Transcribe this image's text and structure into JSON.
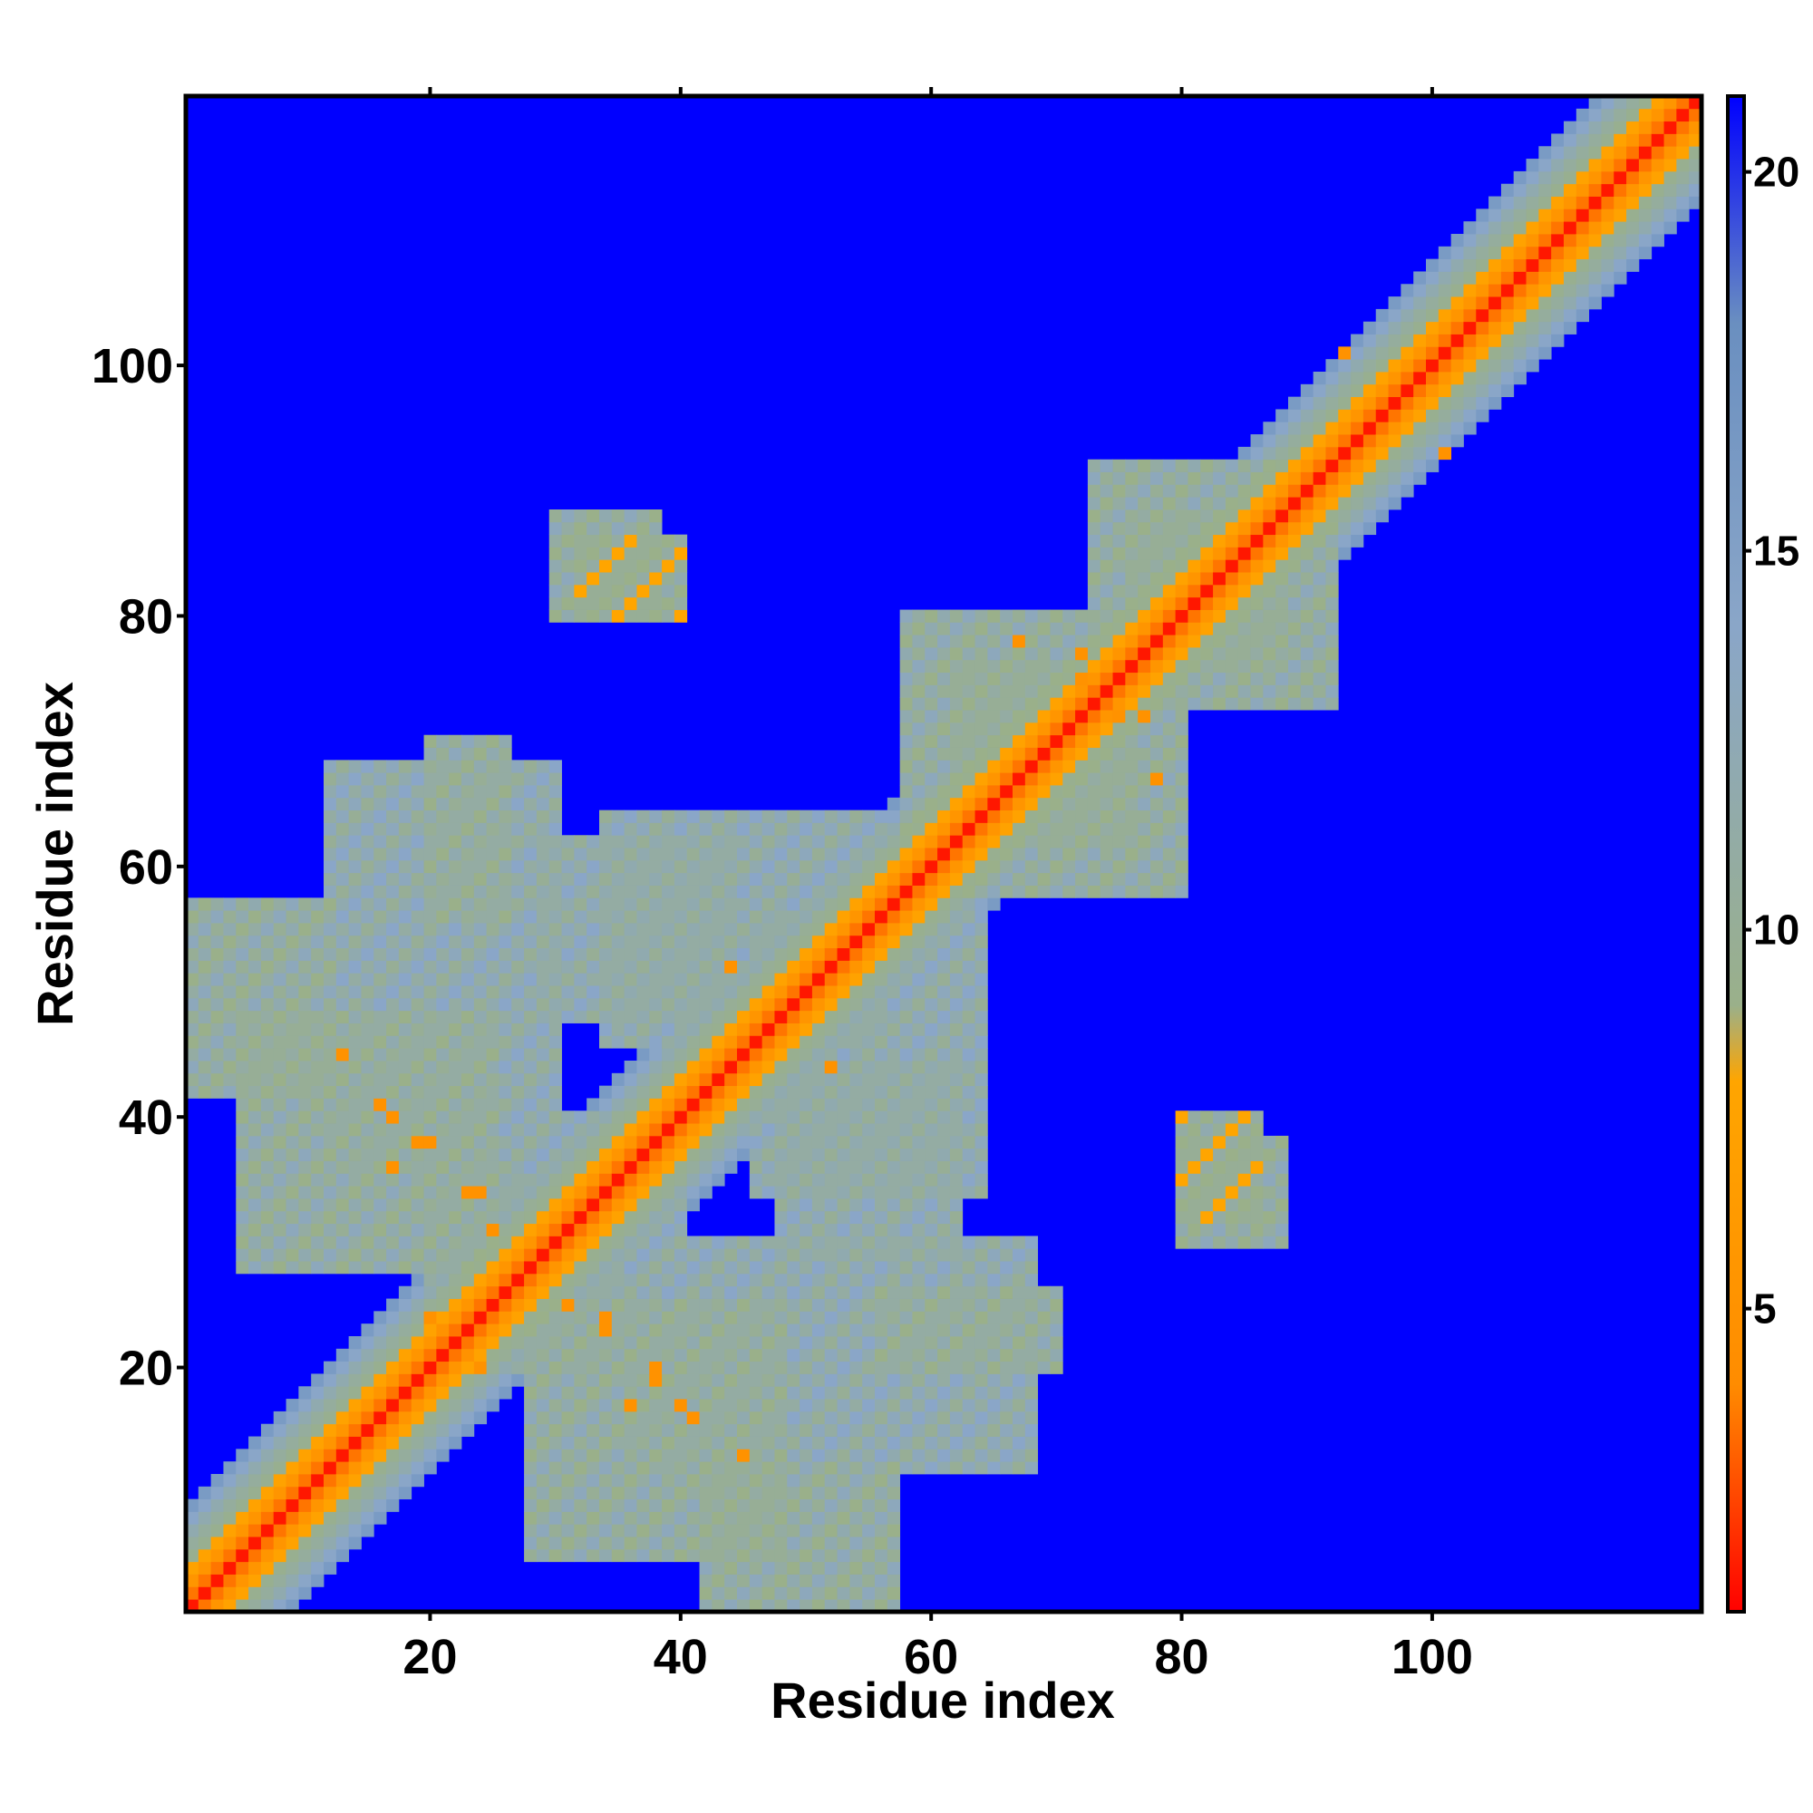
{
  "chart_data": {
    "type": "heatmap",
    "title": "",
    "xlabel": "Residue index",
    "ylabel": "Residue index",
    "xlim": [
      1,
      121
    ],
    "ylim": [
      1,
      121
    ],
    "x_ticks": [
      20,
      40,
      60,
      80,
      100
    ],
    "y_ticks": [
      20,
      40,
      60,
      80,
      100
    ],
    "x_tick_labels": [
      "20",
      "40",
      "60",
      "80",
      "100"
    ],
    "y_tick_labels": [
      "20",
      "40",
      "60",
      "80",
      "100"
    ],
    "colorbar": {
      "range": [
        1,
        21
      ],
      "ticks": [
        5,
        10,
        15,
        20
      ],
      "tick_labels": [
        "5",
        "10",
        "15",
        "20"
      ],
      "colors": [
        "#ff0000",
        "#ff8c00",
        "#ffa500",
        "#9ab08a",
        "#8aa6c8",
        "#6a8fc0",
        "#0000ff"
      ],
      "color_stops": [
        1,
        4,
        8,
        9,
        14,
        18,
        21
      ]
    },
    "background_value": 21,
    "diagonal_profile": [
      {
        "offset": 0,
        "value": 1.5
      },
      {
        "offset": 1,
        "value": 3.5
      },
      {
        "offset": 2,
        "value": 5.5
      },
      {
        "offset": 3,
        "value": 7.5
      },
      {
        "offset": 4,
        "value": 9.5
      },
      {
        "offset": 5,
        "value": 10.5
      },
      {
        "offset": 6,
        "value": 12
      },
      {
        "offset": 7,
        "value": 14
      },
      {
        "offset": 8,
        "value": 16
      }
    ],
    "contact_blocks": [
      {
        "i": [
          1,
          12
        ],
        "j": [
          42,
          57
        ],
        "value": 11
      },
      {
        "i": [
          12,
          30
        ],
        "j": [
          36,
          68
        ],
        "value": 12
      },
      {
        "i": [
          28,
          48
        ],
        "j": [
          5,
          25
        ],
        "value": 11
      },
      {
        "i": [
          20,
          35
        ],
        "j": [
          25,
          40
        ],
        "value": 12
      },
      {
        "i": [
          34,
          56
        ],
        "j": [
          46,
          64
        ],
        "value": 12
      },
      {
        "i": [
          62,
          80
        ],
        "j": [
          58,
          76
        ],
        "value": 11
      },
      {
        "i": [
          48,
          62
        ],
        "j": [
          29,
          44
        ],
        "value": 12
      },
      {
        "i": [
          56,
          70
        ],
        "j": [
          20,
          26
        ],
        "value": 11
      },
      {
        "i": [
          73,
          88
        ],
        "j": [
          76,
          92
        ],
        "value": 11
      },
      {
        "i": [
          80,
          88
        ],
        "j": [
          30,
          38
        ],
        "value": 11
      },
      {
        "i": [
          32,
          40
        ],
        "j": [
          80,
          86
        ],
        "value": 10
      }
    ],
    "close_contacts": [
      [
        13,
        45
      ],
      [
        16,
        41
      ],
      [
        20,
        38
      ],
      [
        23,
        34
      ],
      [
        25,
        31
      ],
      [
        21,
        23
      ],
      [
        24,
        20
      ],
      [
        36,
        17
      ],
      [
        40,
        17
      ],
      [
        45,
        13
      ],
      [
        34,
        24
      ],
      [
        38,
        19
      ],
      [
        72,
        77
      ],
      [
        75,
        72
      ],
      [
        78,
        67
      ],
      [
        44,
        52
      ],
      [
        52,
        44
      ],
      [
        93,
        101
      ]
    ]
  }
}
